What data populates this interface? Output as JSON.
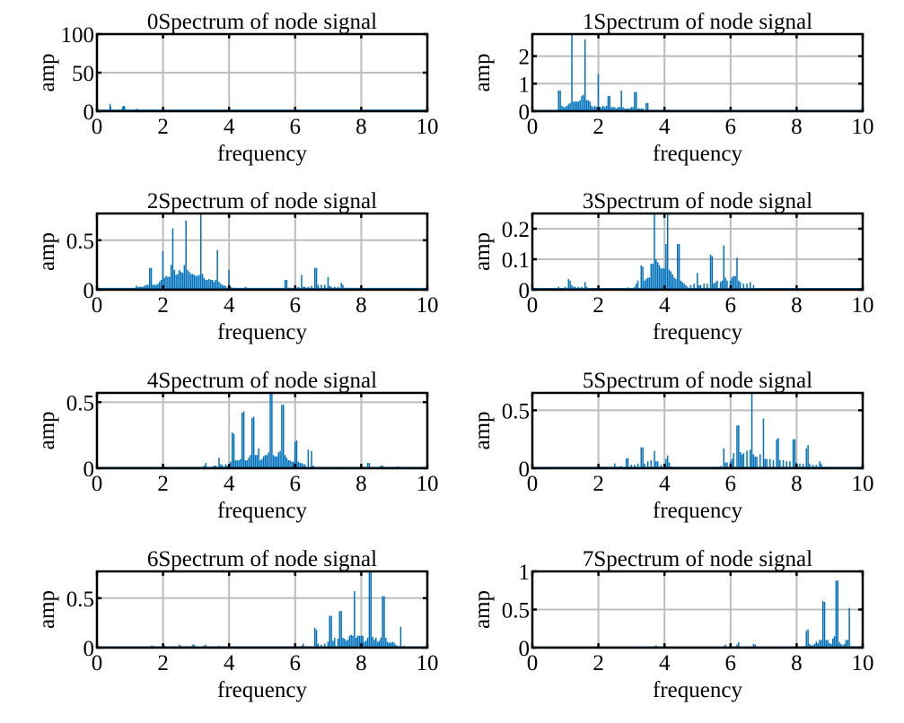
{
  "figure": {
    "bar_color": "#0072bd",
    "grid_color": "#bdbdbd"
  },
  "chart_data": [
    {
      "type": "bar",
      "title": "0Spectrum of node signal",
      "xlabel": "frequency",
      "ylabel": "amp",
      "xlim": [
        0,
        10
      ],
      "ylim": [
        0,
        100
      ],
      "xticks": [
        "0",
        "2",
        "4",
        "6",
        "8",
        "10"
      ],
      "yticks": [
        {
          "v": 0,
          "label": "0"
        },
        {
          "v": 50,
          "label": "50"
        },
        {
          "v": 100,
          "label": "100"
        }
      ],
      "grid": true,
      "x": [
        0.4,
        0.42,
        0.78,
        0.8,
        0.82,
        0.84,
        1.2,
        1.22,
        1.25,
        1.62,
        1.64
      ],
      "values": [
        9.5,
        6,
        5,
        6.5,
        7,
        6,
        3,
        3,
        2.5,
        2.5,
        2
      ],
      "baseline": 1.0
    },
    {
      "type": "bar",
      "title": "1Spectrum of node signal",
      "xlabel": "frequency",
      "ylabel": "amp",
      "xlim": [
        0,
        10
      ],
      "ylim": [
        0,
        2.8
      ],
      "xticks": [
        "0",
        "2",
        "4",
        "6",
        "8",
        "10"
      ],
      "yticks": [
        {
          "v": 0,
          "label": "0"
        },
        {
          "v": 1,
          "label": "1"
        },
        {
          "v": 2,
          "label": "2"
        }
      ],
      "grid": true,
      "x": [
        0.8,
        0.85,
        0.9,
        0.95,
        1.0,
        1.05,
        1.1,
        1.15,
        1.2,
        1.25,
        1.3,
        1.35,
        1.4,
        1.45,
        1.5,
        1.55,
        1.6,
        1.65,
        1.7,
        1.75,
        1.8,
        1.85,
        1.9,
        1.95,
        2.0,
        2.05,
        2.1,
        2.15,
        2.2,
        2.25,
        2.3,
        2.35,
        2.4,
        2.45,
        2.5,
        2.55,
        2.6,
        2.65,
        2.7,
        2.75,
        2.8,
        2.85,
        2.9,
        2.95,
        3.0,
        3.05,
        3.1,
        3.15,
        3.2,
        3.25,
        3.3,
        3.35,
        3.4,
        3.45,
        3.5,
        3.55,
        3.6,
        3.65,
        3.7,
        3.75
      ],
      "values": [
        0.75,
        0.75,
        0.2,
        0.15,
        0.15,
        0.2,
        0.25,
        0.3,
        2.8,
        0.35,
        0.35,
        0.35,
        0.35,
        0.4,
        0.55,
        0.6,
        2.6,
        0.4,
        0.4,
        0.35,
        0.2,
        0.15,
        0.2,
        0.15,
        1.35,
        0.15,
        0.15,
        0.2,
        0.15,
        0.2,
        0.55,
        0.55,
        0.15,
        0.15,
        0.15,
        0.1,
        0.15,
        0.15,
        0.75,
        0.15,
        0.1,
        0.1,
        0.1,
        0.1,
        0.15,
        0.15,
        0.7,
        0.7,
        0.1,
        0.1,
        0.1,
        0.1,
        0.05,
        0.3,
        0.3,
        0.02,
        0.02,
        0.02,
        0.02,
        0.02
      ],
      "baseline": 0.02
    },
    {
      "type": "bar",
      "title": "2Spectrum of node signal",
      "xlabel": "frequency",
      "ylabel": "amp",
      "xlim": [
        0,
        10
      ],
      "ylim": [
        0,
        0.77
      ],
      "xticks": [
        "0",
        "2",
        "4",
        "6",
        "8",
        "10"
      ],
      "yticks": [
        {
          "v": 0,
          "label": "0"
        },
        {
          "v": 0.5,
          "label": "0.5"
        }
      ],
      "grid": true,
      "x": [
        1.2,
        1.25,
        1.3,
        1.35,
        1.4,
        1.45,
        1.5,
        1.55,
        1.6,
        1.65,
        1.7,
        1.75,
        1.8,
        1.85,
        1.9,
        1.95,
        2.0,
        2.05,
        2.1,
        2.15,
        2.2,
        2.25,
        2.3,
        2.35,
        2.4,
        2.45,
        2.5,
        2.55,
        2.6,
        2.65,
        2.7,
        2.75,
        2.8,
        2.85,
        2.9,
        2.95,
        3.0,
        3.05,
        3.1,
        3.15,
        3.2,
        3.25,
        3.3,
        3.35,
        3.4,
        3.45,
        3.5,
        3.55,
        3.6,
        3.65,
        3.7,
        3.75,
        3.8,
        3.85,
        3.9,
        3.95,
        4.0,
        4.05,
        4.1,
        4.15,
        4.2,
        4.3,
        4.5,
        4.55,
        5.7,
        5.75,
        5.8,
        5.85,
        6.0,
        6.1,
        6.2,
        6.25,
        6.3,
        6.4,
        6.5,
        6.6,
        6.65,
        6.7,
        6.8,
        6.9,
        7.0,
        7.05,
        7.1,
        7.2,
        7.3,
        7.4,
        7.45,
        7.5,
        7.6,
        7.9
      ],
      "values": [
        0.04,
        0.03,
        0.03,
        0.03,
        0.03,
        0.04,
        0.05,
        0.05,
        0.22,
        0.22,
        0.05,
        0.05,
        0.05,
        0.06,
        0.08,
        0.1,
        0.39,
        0.12,
        0.14,
        0.13,
        0.13,
        0.25,
        0.62,
        0.2,
        0.15,
        0.16,
        0.2,
        0.18,
        0.17,
        0.25,
        0.7,
        0.2,
        0.18,
        0.16,
        0.16,
        0.15,
        0.14,
        0.14,
        0.15,
        0.77,
        0.16,
        0.12,
        0.1,
        0.1,
        0.11,
        0.1,
        0.1,
        0.08,
        0.1,
        0.4,
        0.08,
        0.06,
        0.05,
        0.04,
        0.04,
        0.02,
        0.2,
        0.03,
        0.02,
        0.02,
        0.02,
        0.01,
        0.03,
        0.02,
        0.1,
        0.1,
        0.02,
        0.02,
        0.03,
        0.03,
        0.15,
        0.03,
        0.03,
        0.03,
        0.04,
        0.22,
        0.22,
        0.05,
        0.05,
        0.05,
        0.13,
        0.04,
        0.03,
        0.03,
        0.03,
        0.07,
        0.05,
        0.02,
        0.02,
        0.02
      ],
      "baseline": 0.01
    },
    {
      "type": "bar",
      "title": "3Spectrum of node signal",
      "xlabel": "frequency",
      "ylabel": "amp",
      "xlim": [
        0,
        10
      ],
      "ylim": [
        0,
        0.25
      ],
      "xticks": [
        "0",
        "2",
        "4",
        "6",
        "8",
        "10"
      ],
      "yticks": [
        {
          "v": 0,
          "label": "0"
        },
        {
          "v": 0.1,
          "label": "0.1"
        },
        {
          "v": 0.2,
          "label": "0.2"
        }
      ],
      "grid": true,
      "x": [
        0.8,
        0.9,
        1.0,
        1.1,
        1.15,
        1.2,
        1.25,
        1.3,
        1.4,
        1.5,
        1.6,
        1.65,
        1.7,
        2.9,
        3.1,
        3.15,
        3.2,
        3.3,
        3.35,
        3.4,
        3.45,
        3.5,
        3.55,
        3.6,
        3.65,
        3.7,
        3.75,
        3.8,
        3.85,
        3.9,
        3.95,
        4.0,
        4.05,
        4.1,
        4.15,
        4.2,
        4.25,
        4.3,
        4.35,
        4.4,
        4.45,
        4.5,
        4.55,
        4.6,
        4.65,
        4.7,
        4.8,
        4.9,
        5.0,
        5.05,
        5.1,
        5.2,
        5.3,
        5.4,
        5.45,
        5.5,
        5.55,
        5.6,
        5.7,
        5.75,
        5.8,
        5.85,
        5.9,
        6.0,
        6.05,
        6.1,
        6.15,
        6.2,
        6.25,
        6.3,
        6.4,
        6.5,
        6.6,
        6.7
      ],
      "values": [
        0.01,
        0.005,
        0.01,
        0.035,
        0.03,
        0.015,
        0.01,
        0.01,
        0.01,
        0.01,
        0.025,
        0.01,
        0.005,
        0.008,
        0.01,
        0.02,
        0.03,
        0.08,
        0.075,
        0.03,
        0.035,
        0.04,
        0.04,
        0.085,
        0.085,
        0.25,
        0.1,
        0.09,
        0.08,
        0.07,
        0.07,
        0.07,
        0.15,
        0.25,
        0.065,
        0.06,
        0.05,
        0.04,
        0.035,
        0.15,
        0.15,
        0.03,
        0.025,
        0.02,
        0.015,
        0.01,
        0.015,
        0.02,
        0.055,
        0.015,
        0.015,
        0.02,
        0.02,
        0.115,
        0.11,
        0.02,
        0.025,
        0.03,
        0.025,
        0.03,
        0.145,
        0.04,
        0.03,
        0.03,
        0.04,
        0.045,
        0.045,
        0.105,
        0.03,
        0.025,
        0.02,
        0.02,
        0.025,
        0.015
      ],
      "baseline": 0.003
    },
    {
      "type": "bar",
      "title": "4Spectrum of node signal",
      "xlabel": "frequency",
      "ylabel": "amp",
      "xlim": [
        0,
        10
      ],
      "ylim": [
        0,
        0.57
      ],
      "xticks": [
        "0",
        "2",
        "4",
        "6",
        "8",
        "10"
      ],
      "yticks": [
        {
          "v": 0,
          "label": "0"
        },
        {
          "v": 0.5,
          "label": "0.5"
        }
      ],
      "grid": true,
      "x": [
        3.25,
        3.3,
        3.55,
        3.6,
        3.7,
        3.75,
        3.8,
        3.9,
        3.95,
        4.0,
        4.05,
        4.1,
        4.15,
        4.2,
        4.25,
        4.3,
        4.35,
        4.4,
        4.45,
        4.5,
        4.55,
        4.6,
        4.65,
        4.7,
        4.75,
        4.8,
        4.85,
        4.9,
        4.95,
        5.0,
        5.05,
        5.1,
        5.15,
        5.2,
        5.25,
        5.3,
        5.35,
        5.4,
        5.45,
        5.5,
        5.55,
        5.6,
        5.65,
        5.7,
        5.75,
        5.8,
        5.85,
        5.9,
        5.95,
        6.0,
        6.05,
        6.1,
        6.15,
        6.2,
        6.25,
        6.3,
        6.4,
        6.5,
        6.55,
        6.6,
        6.7,
        6.9,
        7.2,
        7.3,
        8.2,
        8.25,
        8.6,
        8.65,
        9.1
      ],
      "values": [
        0.02,
        0.04,
        0.02,
        0.02,
        0.08,
        0.03,
        0.025,
        0.03,
        0.02,
        0.03,
        0.05,
        0.27,
        0.26,
        0.06,
        0.06,
        0.06,
        0.07,
        0.42,
        0.43,
        0.06,
        0.06,
        0.08,
        0.1,
        0.38,
        0.39,
        0.1,
        0.1,
        0.15,
        0.06,
        0.07,
        0.09,
        0.1,
        0.1,
        0.12,
        0.57,
        0.57,
        0.1,
        0.09,
        0.09,
        0.12,
        0.13,
        0.48,
        0.48,
        0.1,
        0.08,
        0.06,
        0.06,
        0.05,
        0.05,
        0.2,
        0.21,
        0.05,
        0.04,
        0.04,
        0.03,
        0.03,
        0.14,
        0.13,
        0.02,
        0.01,
        0.01,
        0.005,
        0.01,
        0.01,
        0.04,
        0.04,
        0.02,
        0.02,
        0.015
      ],
      "baseline": 0.004
    },
    {
      "type": "bar",
      "title": "5Spectrum of node signal",
      "xlabel": "frequency",
      "ylabel": "amp",
      "xlim": [
        0,
        10
      ],
      "ylim": [
        0,
        0.65
      ],
      "xticks": [
        "0",
        "2",
        "4",
        "6",
        "8",
        "10"
      ],
      "yticks": [
        {
          "v": 0,
          "label": "0"
        },
        {
          "v": 0.5,
          "label": "0.5"
        }
      ],
      "grid": true,
      "x": [
        2.05,
        2.4,
        2.5,
        2.6,
        2.7,
        2.85,
        2.9,
        3.0,
        3.1,
        3.2,
        3.3,
        3.35,
        3.4,
        3.5,
        3.6,
        3.7,
        3.75,
        3.8,
        3.9,
        4.05,
        4.1,
        4.15,
        4.2,
        4.6,
        5.4,
        5.6,
        5.7,
        5.8,
        5.85,
        5.9,
        6.0,
        6.05,
        6.1,
        6.2,
        6.25,
        6.3,
        6.35,
        6.4,
        6.5,
        6.6,
        6.65,
        6.7,
        6.75,
        6.8,
        6.9,
        7.0,
        7.05,
        7.1,
        7.2,
        7.3,
        7.4,
        7.45,
        7.5,
        7.6,
        7.7,
        7.8,
        7.9,
        7.95,
        8.0,
        8.1,
        8.2,
        8.3,
        8.35,
        8.4,
        8.5,
        8.6,
        8.7,
        8.75,
        8.8
      ],
      "values": [
        0.015,
        0.01,
        0.04,
        0.015,
        0.02,
        0.085,
        0.085,
        0.03,
        0.03,
        0.04,
        0.18,
        0.18,
        0.04,
        0.06,
        0.07,
        0.15,
        0.06,
        0.06,
        0.03,
        0.08,
        0.11,
        0.05,
        0.015,
        0.01,
        0.01,
        0.01,
        0.02,
        0.17,
        0.05,
        0.05,
        0.06,
        0.08,
        0.13,
        0.37,
        0.37,
        0.14,
        0.12,
        0.13,
        0.15,
        0.16,
        0.65,
        0.12,
        0.1,
        0.1,
        0.12,
        0.43,
        0.08,
        0.08,
        0.08,
        0.07,
        0.25,
        0.26,
        0.07,
        0.07,
        0.06,
        0.06,
        0.25,
        0.25,
        0.05,
        0.04,
        0.04,
        0.17,
        0.2,
        0.04,
        0.03,
        0.03,
        0.06,
        0.04,
        0.01
      ],
      "baseline": 0.005
    },
    {
      "type": "bar",
      "title": "6Spectrum of node signal",
      "xlabel": "frequency",
      "ylabel": "amp",
      "xlim": [
        0,
        10
      ],
      "ylim": [
        0,
        0.77
      ],
      "xticks": [
        "0",
        "2",
        "4",
        "6",
        "8",
        "10"
      ],
      "yticks": [
        {
          "v": 0,
          "label": "0"
        },
        {
          "v": 0.5,
          "label": "0.5"
        }
      ],
      "grid": true,
      "x": [
        1.65,
        1.7,
        2.05,
        2.5,
        2.55,
        2.9,
        2.95,
        3.25,
        3.3,
        3.7,
        6.2,
        6.25,
        6.6,
        6.65,
        6.7,
        6.8,
        6.9,
        7.0,
        7.05,
        7.1,
        7.15,
        7.2,
        7.3,
        7.35,
        7.4,
        7.45,
        7.5,
        7.55,
        7.6,
        7.65,
        7.7,
        7.75,
        7.8,
        7.85,
        7.9,
        7.95,
        8.0,
        8.05,
        8.1,
        8.15,
        8.2,
        8.25,
        8.3,
        8.35,
        8.4,
        8.45,
        8.5,
        8.55,
        8.6,
        8.65,
        8.7,
        8.75,
        8.8,
        8.85,
        8.9,
        8.95,
        9.0,
        9.05,
        9.1,
        9.2,
        9.3,
        9.6
      ],
      "values": [
        0.02,
        0.02,
        0.02,
        0.03,
        0.02,
        0.03,
        0.03,
        0.02,
        0.03,
        0.02,
        0.02,
        0.04,
        0.2,
        0.18,
        0.04,
        0.03,
        0.04,
        0.06,
        0.32,
        0.32,
        0.07,
        0.1,
        0.09,
        0.37,
        0.37,
        0.1,
        0.09,
        0.07,
        0.08,
        0.12,
        0.13,
        0.12,
        0.57,
        0.1,
        0.12,
        0.12,
        0.12,
        0.12,
        0.06,
        0.07,
        0.1,
        0.77,
        0.77,
        0.11,
        0.08,
        0.1,
        0.06,
        0.07,
        0.1,
        0.52,
        0.52,
        0.1,
        0.06,
        0.05,
        0.05,
        0.06,
        0.05,
        0.03,
        0.02,
        0.21,
        0.02,
        0.01
      ],
      "baseline": 0.005
    },
    {
      "type": "bar",
      "title": "7Spectrum of node signal",
      "xlabel": "frequency",
      "ylabel": "amp",
      "xlim": [
        0,
        10
      ],
      "ylim": [
        0,
        1.0
      ],
      "xticks": [
        "0",
        "2",
        "4",
        "6",
        "8",
        "10"
      ],
      "yticks": [
        {
          "v": 0,
          "label": "0"
        },
        {
          "v": 0.5,
          "label": "0.5"
        },
        {
          "v": 1,
          "label": "1"
        }
      ],
      "grid": true,
      "x": [
        3.3,
        3.7,
        3.75,
        5.8,
        5.85,
        6.2,
        6.25,
        6.7,
        6.75,
        8.2,
        8.25,
        8.3,
        8.35,
        8.4,
        8.45,
        8.5,
        8.55,
        8.6,
        8.65,
        8.7,
        8.75,
        8.8,
        8.85,
        8.9,
        8.95,
        9.0,
        9.05,
        9.1,
        9.15,
        9.2,
        9.25,
        9.3,
        9.35,
        9.4,
        9.45,
        9.5,
        9.55,
        9.6,
        9.65,
        9.7,
        9.75,
        9.8,
        9.9
      ],
      "values": [
        0.01,
        0.02,
        0.03,
        0.02,
        0.04,
        0.04,
        0.07,
        0.05,
        0.04,
        0.02,
        0.02,
        0.22,
        0.24,
        0.05,
        0.03,
        0.03,
        0.05,
        0.08,
        0.06,
        0.1,
        0.1,
        0.61,
        0.6,
        0.1,
        0.1,
        0.06,
        0.05,
        0.12,
        0.15,
        0.88,
        0.88,
        0.07,
        0.05,
        0.03,
        0.05,
        0.1,
        0.1,
        0.52,
        0.02,
        0.02,
        0.02,
        0.01,
        0.02
      ],
      "baseline": 0.005
    }
  ]
}
